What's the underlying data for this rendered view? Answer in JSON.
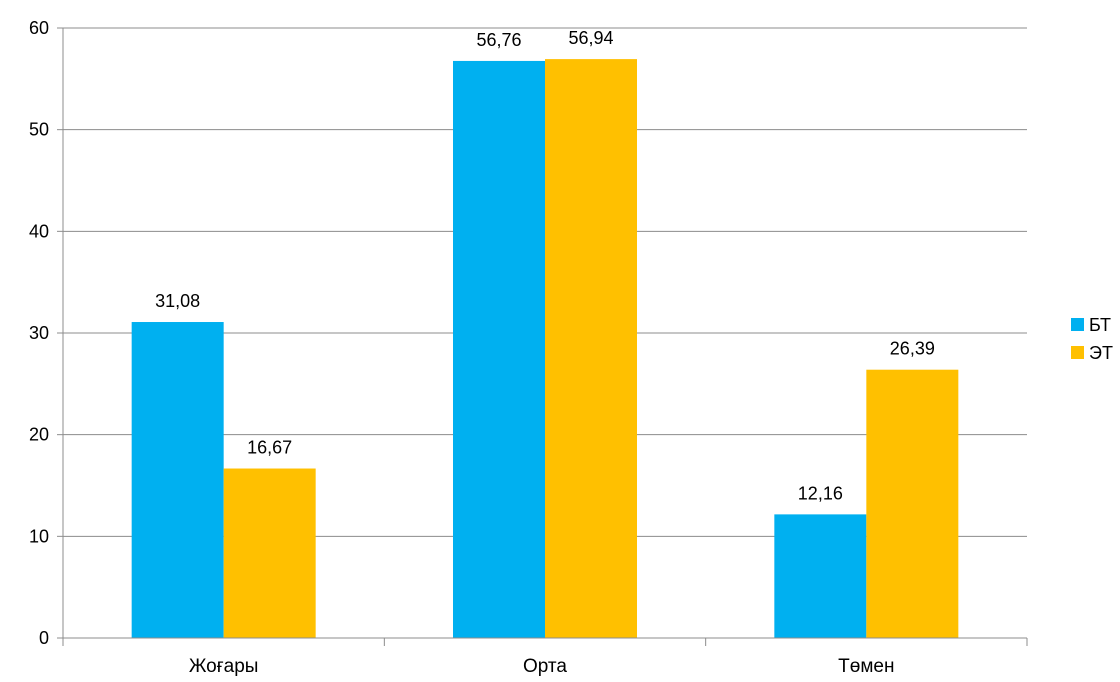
{
  "chart_data": {
    "type": "bar",
    "categories": [
      "Жоғары",
      "Орта",
      "Төмен"
    ],
    "series": [
      {
        "name": "БТ",
        "color": "#00B0F0",
        "values": [
          31.08,
          56.76,
          12.16
        ],
        "labels": [
          "31,08",
          "56,76",
          "12,16"
        ]
      },
      {
        "name": "ЭТ",
        "color": "#FFC000",
        "values": [
          16.67,
          56.94,
          26.39
        ],
        "labels": [
          "16,67",
          "56,94",
          "26,39"
        ]
      }
    ],
    "ylim": [
      0,
      60
    ],
    "yticks": [
      0,
      10,
      20,
      30,
      40,
      50,
      60
    ],
    "grid": true,
    "legend_position": "right",
    "title": "",
    "xlabel": "",
    "ylabel": ""
  }
}
